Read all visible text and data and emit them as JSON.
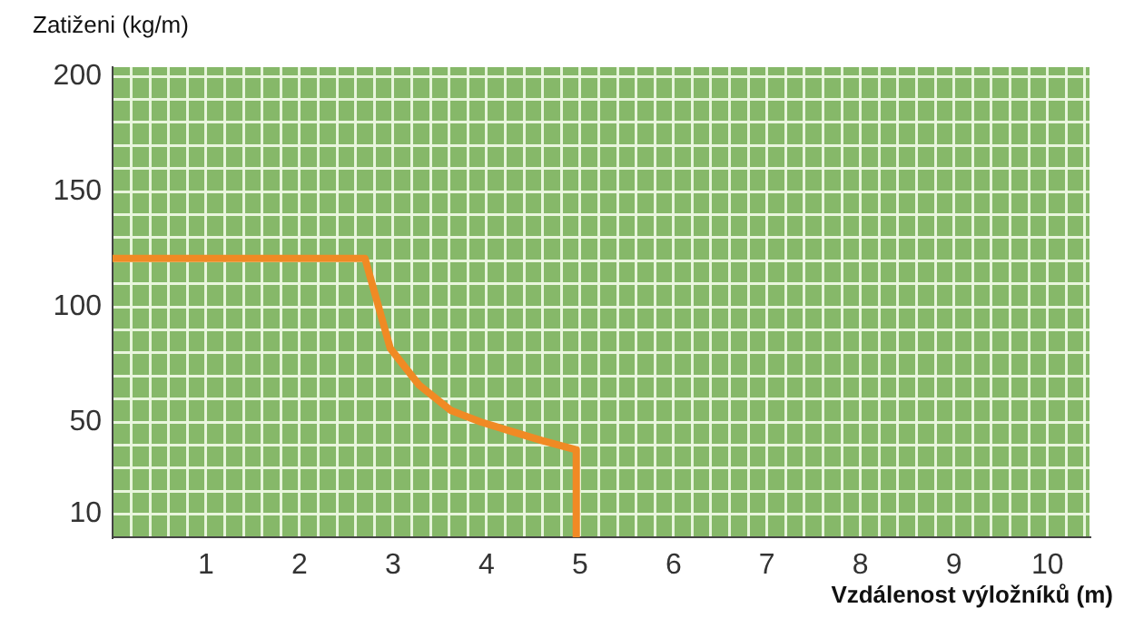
{
  "chart_data": {
    "type": "line",
    "xlabel": "Vzdálenost výložníků (m)",
    "ylabel": "Zatiženi (kg/m)",
    "series": [
      {
        "color": "#f08a24",
        "x": [
          0,
          2.7,
          2.97,
          3.28,
          3.62,
          3.94,
          4.26,
          4.59,
          4.96,
          4.96
        ],
        "values": [
          121,
          121,
          82,
          66,
          55,
          50,
          46,
          42,
          38,
          0
        ]
      }
    ],
    "xlim": [
      0,
      10.45
    ],
    "ylim": [
      0,
      204
    ],
    "xticks": [
      {
        "value": 0.2,
        "label": null
      },
      {
        "value": 0.4,
        "label": null
      },
      {
        "value": 0.6,
        "label": null
      },
      {
        "value": 0.8,
        "label": null
      },
      1,
      {
        "value": 1.2,
        "label": null
      },
      {
        "value": 1.4,
        "label": null
      },
      {
        "value": 1.6,
        "label": null
      },
      {
        "value": 1.8,
        "label": null
      },
      2,
      {
        "value": 2.2,
        "label": null
      },
      {
        "value": 2.4,
        "label": null
      },
      {
        "value": 2.6,
        "label": null
      },
      {
        "value": 2.8,
        "label": null
      },
      3,
      {
        "value": 3.2,
        "label": null
      },
      {
        "value": 3.4,
        "label": null
      },
      {
        "value": 3.6,
        "label": null
      },
      {
        "value": 3.8,
        "label": null
      },
      4,
      {
        "value": 4.2,
        "label": null
      },
      {
        "value": 4.4,
        "label": null
      },
      {
        "value": 4.6,
        "label": null
      },
      {
        "value": 4.8,
        "label": null
      },
      5,
      {
        "value": 5.2,
        "label": null
      },
      {
        "value": 5.4,
        "label": null
      },
      {
        "value": 5.6,
        "label": null
      },
      {
        "value": 5.8,
        "label": null
      },
      6,
      {
        "value": 6.2,
        "label": null
      },
      {
        "value": 6.4,
        "label": null
      },
      {
        "value": 6.6,
        "label": null
      },
      {
        "value": 6.8,
        "label": null
      },
      7,
      {
        "value": 7.2,
        "label": null
      },
      {
        "value": 7.4,
        "label": null
      },
      {
        "value": 7.6,
        "label": null
      },
      {
        "value": 7.8,
        "label": null
      },
      8,
      {
        "value": 8.2,
        "label": null
      },
      {
        "value": 8.4,
        "label": null
      },
      {
        "value": 8.6,
        "label": null
      },
      {
        "value": 8.8,
        "label": null
      },
      9,
      {
        "value": 9.2,
        "label": null
      },
      {
        "value": 9.4,
        "label": null
      },
      {
        "value": 9.6,
        "label": null
      },
      {
        "value": 9.8,
        "label": null
      },
      10,
      {
        "value": 10.2,
        "label": null
      },
      {
        "value": 10.4,
        "label": null
      }
    ],
    "yticks": [
      10,
      {
        "value": 20,
        "label": null
      },
      {
        "value": 30,
        "label": null
      },
      {
        "value": 40,
        "label": null
      },
      50,
      {
        "value": 60,
        "label": null
      },
      {
        "value": 70,
        "label": null
      },
      {
        "value": 80,
        "label": null
      },
      {
        "value": 90,
        "label": null
      },
      100,
      {
        "value": 110,
        "label": null
      },
      {
        "value": 120,
        "label": null
      },
      {
        "value": 130,
        "label": null
      },
      {
        "value": 140,
        "label": null
      },
      150,
      {
        "value": 160,
        "label": null
      },
      {
        "value": 170,
        "label": null
      },
      {
        "value": 180,
        "label": null
      },
      {
        "value": 190,
        "label": null
      },
      200
    ],
    "grid": true,
    "legend": false,
    "marker": "none",
    "line_style": "solid"
  }
}
